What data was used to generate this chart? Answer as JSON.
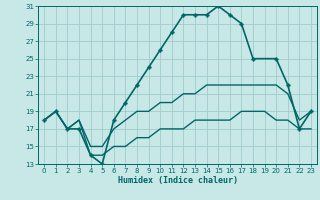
{
  "xlabel": "Humidex (Indice chaleur)",
  "bg_color": "#c8e8e8",
  "grid_color": "#a0cccc",
  "line_color": "#006666",
  "xlim": [
    -0.5,
    23.5
  ],
  "ylim": [
    13,
    31
  ],
  "xticks": [
    0,
    1,
    2,
    3,
    4,
    5,
    6,
    7,
    8,
    9,
    10,
    11,
    12,
    13,
    14,
    15,
    16,
    17,
    18,
    19,
    20,
    21,
    22,
    23
  ],
  "yticks": [
    13,
    15,
    17,
    19,
    21,
    23,
    25,
    27,
    29,
    31
  ],
  "series": [
    {
      "x": [
        0,
        1,
        2,
        3,
        4,
        5,
        6,
        7,
        8,
        9,
        10,
        11,
        12,
        13,
        14,
        15,
        16,
        17,
        18,
        20,
        21,
        22,
        23
      ],
      "y": [
        18,
        19,
        17,
        17,
        14,
        13,
        18,
        20,
        22,
        24,
        26,
        28,
        30,
        30,
        30,
        31,
        30,
        29,
        25,
        25,
        22,
        17,
        19
      ],
      "marker": "P",
      "markersize": 2.5,
      "linewidth": 1.2
    },
    {
      "x": [
        0,
        1,
        2,
        3,
        4,
        5,
        6,
        7,
        8,
        9,
        10,
        11,
        12,
        13,
        14,
        15,
        16,
        17,
        18,
        19,
        20,
        21,
        22,
        23
      ],
      "y": [
        18,
        19,
        17,
        18,
        15,
        15,
        17,
        18,
        19,
        19,
        20,
        20,
        21,
        21,
        22,
        22,
        22,
        22,
        22,
        22,
        22,
        21,
        18,
        19
      ],
      "marker": null,
      "markersize": 0,
      "linewidth": 1.0
    },
    {
      "x": [
        0,
        1,
        2,
        3,
        4,
        5,
        6,
        7,
        8,
        9,
        10,
        11,
        12,
        13,
        14,
        15,
        16,
        17,
        18,
        19,
        20,
        21,
        22,
        23
      ],
      "y": [
        18,
        19,
        17,
        18,
        14,
        14,
        15,
        15,
        16,
        16,
        17,
        17,
        17,
        18,
        18,
        18,
        18,
        19,
        19,
        19,
        18,
        18,
        17,
        17
      ],
      "marker": null,
      "markersize": 0,
      "linewidth": 1.0
    }
  ]
}
